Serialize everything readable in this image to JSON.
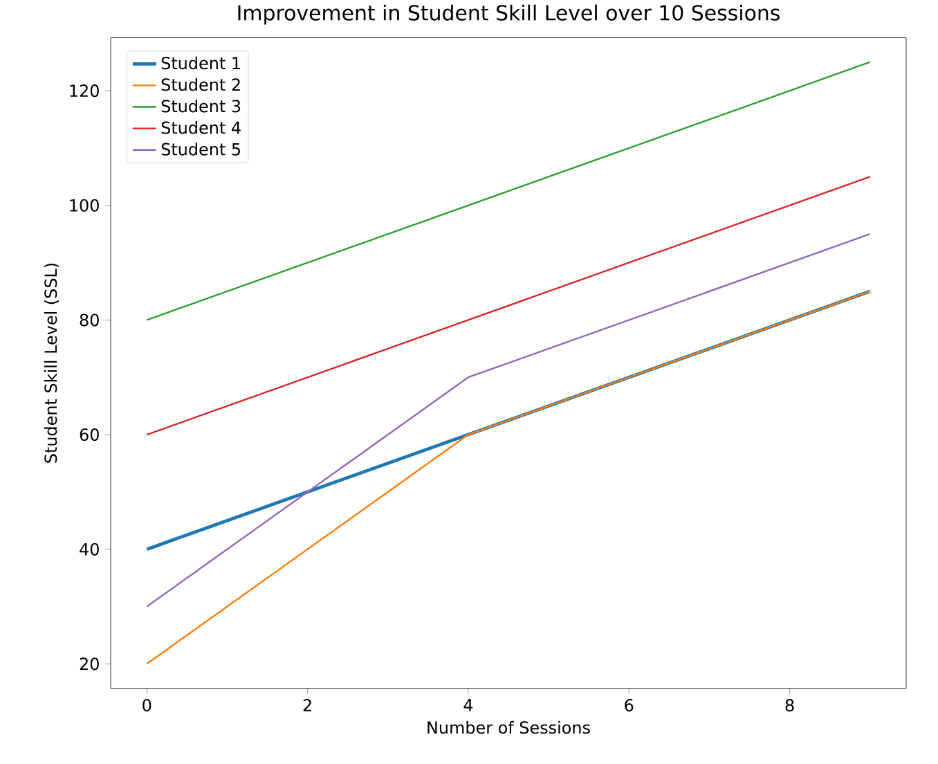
{
  "chart_data": {
    "type": "line",
    "title": "Improvement in Student Skill Level over 10 Sessions",
    "xlabel": "Number of Sessions",
    "ylabel": "Student Skill Level (SSL)",
    "x": [
      0,
      4,
      9
    ],
    "series": [
      {
        "name": "Student 1",
        "color": "#1f77b4",
        "values": [
          40,
          60,
          85
        ]
      },
      {
        "name": "Student 2",
        "color": "#ff7f0e",
        "values": [
          20,
          60,
          85
        ]
      },
      {
        "name": "Student 3",
        "color": "#2ca02c",
        "values": [
          80,
          100,
          125
        ]
      },
      {
        "name": "Student 4",
        "color": "#d62728",
        "values": [
          60,
          80,
          105
        ]
      },
      {
        "name": "Student 5",
        "color": "#9467bd",
        "values": [
          30,
          70,
          95
        ]
      }
    ],
    "xlim": [
      -0.45,
      9.45
    ],
    "ylim": [
      15.75,
      129.25
    ],
    "xticks": [
      0,
      2,
      4,
      6,
      8
    ],
    "yticks": [
      20,
      40,
      60,
      80,
      100,
      120
    ],
    "legend": "top left",
    "grid": false,
    "marker": "none",
    "line_style": "solid"
  }
}
